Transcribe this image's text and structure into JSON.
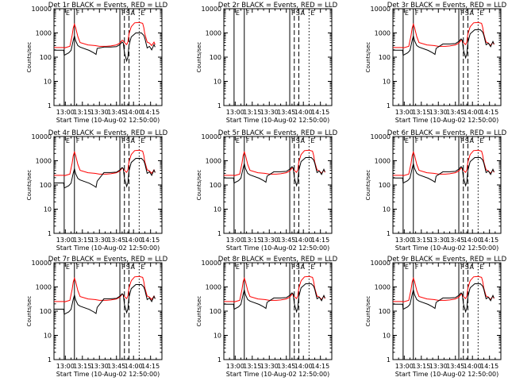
{
  "chart_data": [
    {
      "type": "line",
      "title": "Det 1r  BLACK = Events, RED = LLD",
      "has_data": true,
      "variant": 0
    },
    {
      "type": "line",
      "title": "Det 2r  BLACK = Events, RED = LLD",
      "has_data": false,
      "variant": 0
    },
    {
      "type": "line",
      "title": "Det 3r  BLACK = Events, RED = LLD",
      "has_data": true,
      "variant": 1
    },
    {
      "type": "line",
      "title": "Det 4r  BLACK = Events, RED = LLD",
      "has_data": true,
      "variant": 2
    },
    {
      "type": "line",
      "title": "Det 5r  BLACK = Events, RED = LLD",
      "has_data": true,
      "variant": 1
    },
    {
      "type": "line",
      "title": "Det 6r  BLACK = Events, RED = LLD",
      "has_data": true,
      "variant": 1
    },
    {
      "type": "line",
      "title": "Det 7r  BLACK = Events, RED = LLD",
      "has_data": true,
      "variant": 2
    },
    {
      "type": "line",
      "title": "Det 8r  BLACK = Events, RED = LLD",
      "has_data": true,
      "variant": 1
    },
    {
      "type": "line",
      "title": "Det 9r  BLACK = Events, RED = LLD",
      "has_data": true,
      "variant": 1
    }
  ],
  "axes": {
    "ylabel": "Counts/sec",
    "xlabel": "Start Time (10-Aug-02 12:50:00)",
    "y_scale": "log",
    "ylim": [
      1,
      10000
    ],
    "y_ticks": [
      {
        "v": 1,
        "label": "1"
      },
      {
        "v": 10,
        "label": "10"
      },
      {
        "v": 100,
        "label": "100"
      },
      {
        "v": 1000,
        "label": "1000"
      },
      {
        "v": 10000,
        "label": "10000"
      }
    ],
    "xlim_minutes": [
      0,
      95
    ],
    "x_ticks": [
      {
        "m": 10,
        "label": "13:00"
      },
      {
        "m": 25,
        "label": "13:15"
      },
      {
        "m": 40,
        "label": "13:30"
      },
      {
        "m": 55,
        "label": "13:45"
      },
      {
        "m": 70,
        "label": "14:00"
      },
      {
        "m": 85,
        "label": "14:15"
      }
    ]
  },
  "markers": [
    {
      "m": 9,
      "style": "solid",
      "label": "E"
    },
    {
      "m": 18,
      "style": "solid",
      "label": "F"
    },
    {
      "m": 58,
      "style": "solid",
      "label": "F"
    },
    {
      "m": 62,
      "style": "dashed",
      "label": "S"
    },
    {
      "m": 66,
      "style": "dashed",
      "label": "A"
    },
    {
      "m": 75,
      "style": "dotted",
      "label": "E"
    }
  ],
  "series_colors": {
    "events": "#000000",
    "lld": "#ff0000"
  },
  "series": {
    "events": [
      {
        "m": 0,
        "v": 195
      },
      {
        "m": 8.5,
        "v": 195
      },
      {
        "m": 9,
        "v": 120
      },
      {
        "m": 13,
        "v": 150
      },
      {
        "m": 15,
        "v": 190
      },
      {
        "m": 17,
        "v": 500
      },
      {
        "m": 18,
        "v": 750
      },
      {
        "m": 19,
        "v": 480
      },
      {
        "m": 21,
        "v": 300
      },
      {
        "m": 23,
        "v": 260
      },
      {
        "m": 31,
        "v": 190
      },
      {
        "m": 35,
        "v": 150
      },
      {
        "m": 37,
        "v": 130
      },
      {
        "m": 38,
        "v": 230
      },
      {
        "m": 44,
        "v": 260
      },
      {
        "m": 50,
        "v": 260
      },
      {
        "m": 55,
        "v": 270
      },
      {
        "m": 58,
        "v": 330
      },
      {
        "m": 60,
        "v": 420
      },
      {
        "m": 61,
        "v": 380
      },
      {
        "m": 62,
        "v": 150
      },
      {
        "m": 64,
        "v": 70
      },
      {
        "m": 65,
        "v": 100
      },
      {
        "m": 66,
        "v": 300
      },
      {
        "m": 68,
        "v": 680
      },
      {
        "m": 72,
        "v": 1000
      },
      {
        "m": 77,
        "v": 1000
      },
      {
        "m": 79,
        "v": 800
      },
      {
        "m": 80,
        "v": 600
      },
      {
        "m": 82,
        "v": 240
      },
      {
        "m": 84,
        "v": 280
      },
      {
        "m": 86,
        "v": 200
      },
      {
        "m": 88,
        "v": 330
      },
      {
        "m": 89,
        "v": 260
      }
    ],
    "lld": [
      {
        "m": 0,
        "v": 250
      },
      {
        "m": 8.5,
        "v": 250
      },
      {
        "m": 9,
        "v": 240
      },
      {
        "m": 14,
        "v": 280
      },
      {
        "m": 16,
        "v": 800
      },
      {
        "m": 17,
        "v": 1600
      },
      {
        "m": 18,
        "v": 2300
      },
      {
        "m": 19,
        "v": 1700
      },
      {
        "m": 21,
        "v": 700
      },
      {
        "m": 23,
        "v": 400
      },
      {
        "m": 30,
        "v": 320
      },
      {
        "m": 36,
        "v": 300
      },
      {
        "m": 40,
        "v": 280
      },
      {
        "m": 46,
        "v": 280
      },
      {
        "m": 50,
        "v": 290
      },
      {
        "m": 55,
        "v": 320
      },
      {
        "m": 58,
        "v": 380
      },
      {
        "m": 60,
        "v": 500
      },
      {
        "m": 61,
        "v": 470
      },
      {
        "m": 62,
        "v": 400
      },
      {
        "m": 64,
        "v": 330
      },
      {
        "m": 65,
        "v": 420
      },
      {
        "m": 66,
        "v": 900
      },
      {
        "m": 68,
        "v": 1800
      },
      {
        "m": 71,
        "v": 2600
      },
      {
        "m": 75,
        "v": 2700
      },
      {
        "m": 78,
        "v": 2500
      },
      {
        "m": 79,
        "v": 1700
      },
      {
        "m": 80,
        "v": 900
      },
      {
        "m": 82,
        "v": 420
      },
      {
        "m": 84,
        "v": 380
      },
      {
        "m": 86,
        "v": 300
      },
      {
        "m": 88,
        "v": 420
      },
      {
        "m": 89,
        "v": 330
      }
    ]
  },
  "variants": [
    {
      "pre": 1.0,
      "post": 1.0
    },
    {
      "pre": 1.0,
      "post": 1.35
    },
    {
      "pre": 0.62,
      "post": 1.25
    }
  ]
}
